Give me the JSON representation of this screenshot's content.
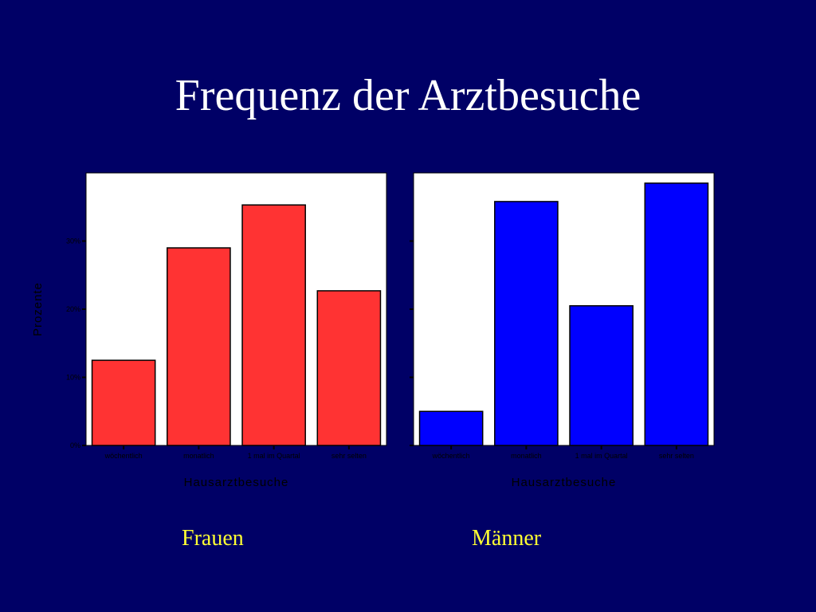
{
  "slide": {
    "title": "Frequenz der Arztbesuche"
  },
  "colors": {
    "background": "#000066",
    "frauen_bar": "#ff3333",
    "maenner_bar": "#0000ff",
    "label": "#ffff33"
  },
  "chart_data": [
    {
      "type": "bar",
      "label": "Frauen",
      "categories": [
        "wöchentlich",
        "monatlich",
        "1 mal im Quartal",
        "sehr selten"
      ],
      "values": [
        12.5,
        29.0,
        35.3,
        22.7
      ],
      "xlabel": "Hausarztbesuche",
      "ylabel": "Prozente",
      "yticks": [
        "0%",
        "10%",
        "20%",
        "30%"
      ],
      "ylim": [
        0,
        40
      ],
      "grid": false,
      "color": "#ff3333"
    },
    {
      "type": "bar",
      "label": "Männer",
      "categories": [
        "wöchentlich",
        "monatlich",
        "1 mal im Quartal",
        "sehr selten"
      ],
      "values": [
        5.0,
        35.8,
        20.5,
        38.5
      ],
      "xlabel": "Hausarztbesuche",
      "ylabel": "",
      "yticks": [
        "",
        "",
        "",
        ""
      ],
      "ylim": [
        0,
        40
      ],
      "grid": false,
      "color": "#0000ff"
    }
  ]
}
